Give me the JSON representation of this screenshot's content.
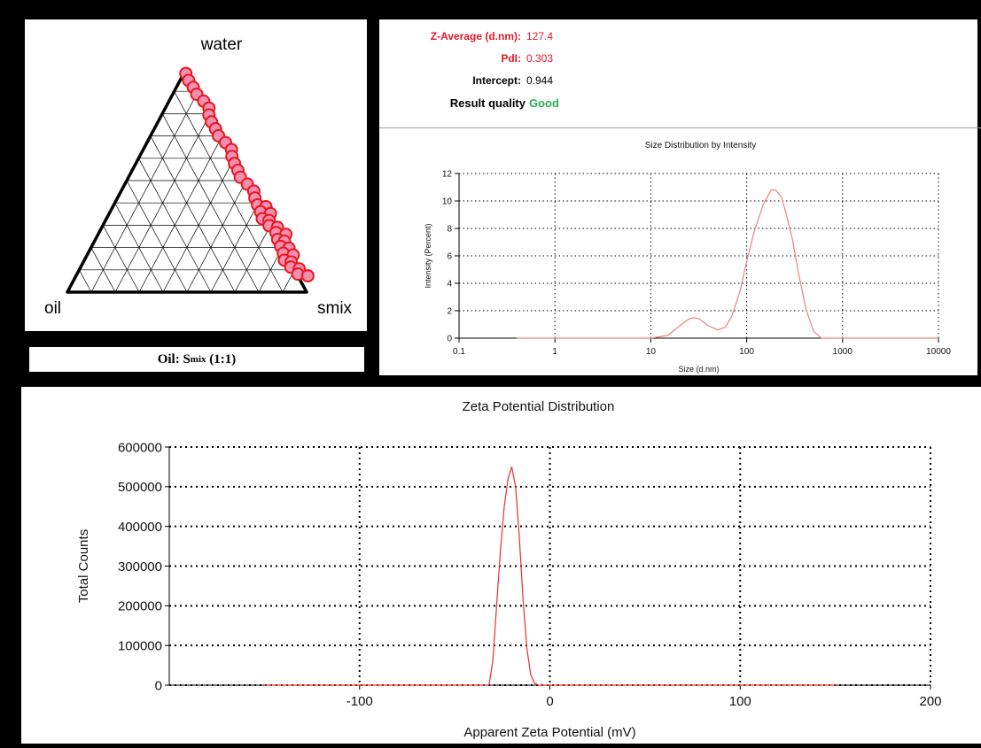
{
  "ternary": {
    "labels": {
      "top": "water",
      "left": "oil",
      "right": "smix"
    },
    "caption_main": "Oil: S",
    "caption_sub": "mix",
    "caption_tail": " (1:1)",
    "marker_fill": "#f48fb1",
    "marker_stroke": "#e8161b"
  },
  "dls_results": {
    "rows": [
      {
        "label": "Z-Average (d.nm):",
        "value": "127.4",
        "label_color": "#e0182b",
        "value_color": "#e0182b"
      },
      {
        "label": "PdI:",
        "value": "0.303",
        "label_color": "#e0182b",
        "value_color": "#e0182b"
      },
      {
        "label": "Intercept:",
        "value": "0.944",
        "label_color": "#000000",
        "value_color": "#000000"
      },
      {
        "label": "Result quality",
        "value": "Good",
        "label_color": "#000000",
        "value_color": "#22b14c"
      }
    ]
  },
  "chart_data": [
    {
      "type": "line",
      "title": "Size Distribution by Intensity",
      "xlabel": "Size (d.nm)",
      "ylabel": "Intensity (Percent)",
      "xscale": "log",
      "xlim": [
        0.1,
        10000
      ],
      "ylim": [
        0,
        12
      ],
      "xticks": [
        "0.1",
        "1",
        "10",
        "100",
        "1000",
        "10000"
      ],
      "yticks": [
        "0",
        "2",
        "4",
        "6",
        "8",
        "10",
        "12"
      ],
      "grid": true,
      "line_color": "#f08080",
      "series": [
        {
          "x": [
            0.4,
            10,
            15,
            20,
            25,
            28,
            32,
            40,
            50,
            60,
            70,
            85,
            100,
            120,
            150,
            180,
            200,
            230,
            260,
            300,
            350,
            420,
            500,
            600,
            10000
          ],
          "y": [
            0,
            0,
            0.2,
            0.9,
            1.4,
            1.5,
            1.4,
            0.9,
            0.6,
            0.8,
            1.6,
            3.4,
            5.6,
            7.8,
            9.8,
            10.8,
            10.8,
            10.3,
            9.0,
            7.2,
            4.6,
            2.0,
            0.5,
            0,
            0
          ]
        }
      ]
    },
    {
      "type": "line",
      "title": "Zeta Potential Distribution",
      "xlabel": "Apparent Zeta Potential (mV)",
      "ylabel": "Total Counts",
      "xlim": [
        -200,
        200
      ],
      "ylim": [
        0,
        600000
      ],
      "xticks": [
        "-100",
        "0",
        "100",
        "200"
      ],
      "yticks": [
        "0",
        "100000",
        "200000",
        "300000",
        "400000",
        "500000",
        "600000"
      ],
      "grid": true,
      "line_color": "#e8302a",
      "series": [
        {
          "x": [
            -150,
            -32,
            -30,
            -28,
            -26,
            -24,
            -22,
            -20,
            -18,
            -16,
            -14,
            -12,
            -10,
            -8,
            -6,
            150
          ],
          "y": [
            0,
            0,
            60000,
            200000,
            340000,
            450000,
            520000,
            550000,
            500000,
            370000,
            210000,
            90000,
            25000,
            5000,
            0,
            0
          ]
        }
      ]
    }
  ]
}
